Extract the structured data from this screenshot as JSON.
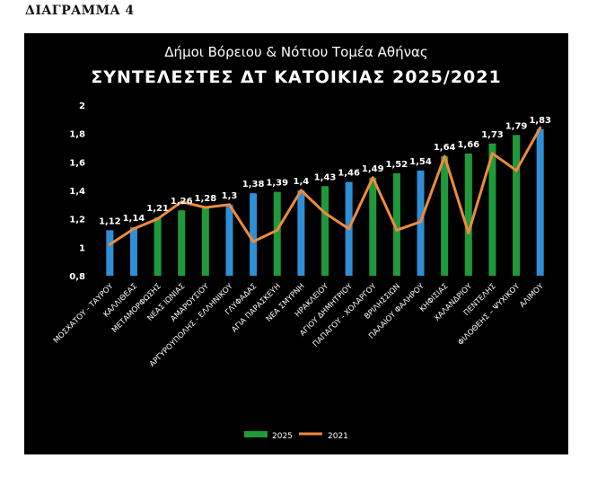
{
  "heading": "ΔΙΑΓΡΑΜΜΑ 4",
  "chart_data": {
    "type": "bar",
    "title": "ΣΥΝΤΕΛΕΣΤΕΣ ΔΤ ΚΑΤΟΙΚΙΑΣ 2025/2021",
    "subtitle": "Δήμοι Βόρειου & Νότιου Τομέα Αθήνας",
    "xlabel": "",
    "ylabel": "",
    "ylim": [
      0.8,
      2
    ],
    "yticks": [
      "0,8",
      "1",
      "1,2",
      "1,4",
      "1,6",
      "1,8",
      "2"
    ],
    "grid": false,
    "legend_position": "bottom",
    "categories": [
      "ΜΟΣΧΑΤΟΥ - ΤΑΥΡΟΥ",
      "ΚΑΛΛΙΘΕΑΣ",
      "ΜΕΤΑΜΟΡΦΩΣΗΣ",
      "ΝΕΑΣ ΙΩΝΙΑΣ",
      "ΑΜΑΡΟΥΣΙΟΥ",
      "ΑΡΓΥΡΟΥΠΟΛΗΣ - ΕΛΛΗΝΙΚΟΥ",
      "ΓΛΥΦΑΔΑΣ",
      "ΑΓΙΑ ΠΑΡΑΣΚΕΥΗ",
      "ΝΕΑ ΣΜΥΡΝΗ",
      "ΗΡΑΚΛΕΙΟΥ",
      "ΑΓΙΟΥ ΔΗΜΗΤΡΙΟΥ",
      "ΠΑΠΑΓΟΥ - ΧΟΛΑΡΓΟΥ",
      "ΒΡΙΛΗΣΣΙΩΝ",
      "ΠΑΛΑΙΟΥ ΦΑΛΗΡΟΥ",
      "ΚΗΦΙΣΙΑΣ",
      "ΧΑΛΑΝΔΡΙΟΥ",
      "ΠΕΝΤΕΛΗΣ",
      "ΦΙΛΟΘΕΗΣ – ΨΥΧΙΚΟΥ",
      "ΑΛΙΜΟΥ"
    ],
    "bar_labels": [
      "1,12",
      "1,14",
      "1,21",
      "1,26",
      "1,28",
      "1,3",
      "1,38",
      "1,39",
      "1,4",
      "1,43",
      "1,46",
      "1,49",
      "1,52",
      "1,54",
      "1,64",
      "1,66",
      "1,73",
      "1,79",
      "1,83"
    ],
    "bar_colors": [
      "blue",
      "blue",
      "green",
      "green",
      "green",
      "blue",
      "blue",
      "green",
      "blue",
      "green",
      "blue",
      "green",
      "green",
      "blue",
      "green",
      "green",
      "green",
      "green",
      "blue"
    ],
    "colors": {
      "green": "#1f9a3a",
      "blue": "#2e8fd6",
      "line": "#f08a3c",
      "text": "#ffffff",
      "background": "#000000"
    },
    "series": [
      {
        "name": "2025",
        "type": "bar",
        "values": [
          1.12,
          1.14,
          1.21,
          1.26,
          1.28,
          1.3,
          1.38,
          1.39,
          1.4,
          1.43,
          1.46,
          1.49,
          1.52,
          1.54,
          1.64,
          1.66,
          1.73,
          1.79,
          1.83
        ]
      },
      {
        "name": "2021",
        "type": "line",
        "values": [
          1.02,
          1.13,
          1.2,
          1.32,
          1.28,
          1.3,
          1.04,
          1.12,
          1.4,
          1.24,
          1.13,
          1.49,
          1.12,
          1.18,
          1.64,
          1.1,
          1.66,
          1.54,
          1.84
        ]
      }
    ]
  }
}
